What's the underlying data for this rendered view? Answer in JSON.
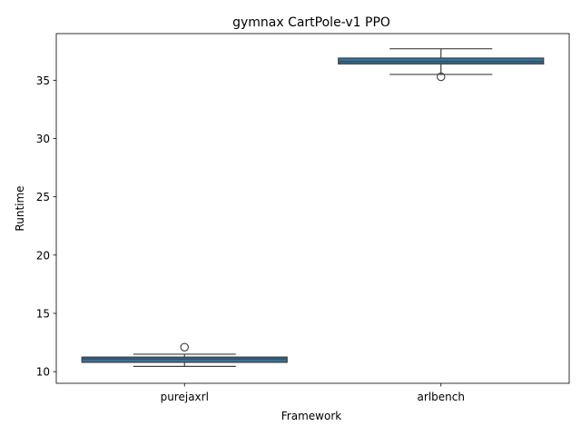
{
  "chart_data": {
    "type": "box",
    "title": "gymnax CartPole-v1 PPO",
    "xlabel": "Framework",
    "ylabel": "Runtime",
    "ylim": [
      9.0,
      39.0
    ],
    "yticks": [
      10,
      15,
      20,
      25,
      30,
      35
    ],
    "grid": false,
    "legend": "none",
    "box_color": "#3274a1",
    "edge_color": "#3f3f3f",
    "categories": [
      "purejaxrl",
      "arlbench"
    ],
    "boxes": [
      {
        "category": "purejaxrl",
        "whisker_low": 10.45,
        "q1": 10.8,
        "median": 11.1,
        "q3": 11.25,
        "whisker_high": 11.5,
        "outliers": [
          12.1
        ]
      },
      {
        "category": "arlbench",
        "whisker_low": 35.5,
        "q1": 36.4,
        "median": 36.6,
        "q3": 36.9,
        "whisker_high": 37.7,
        "outliers": [
          35.3
        ]
      }
    ]
  }
}
